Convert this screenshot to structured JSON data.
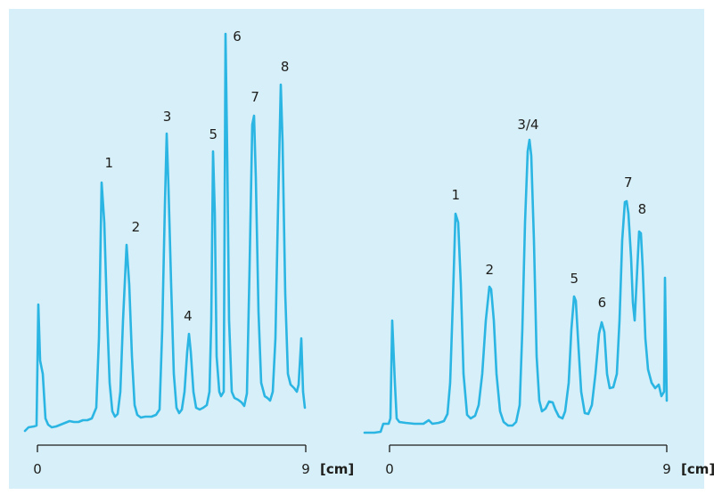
{
  "colors": {
    "background": "#d6eff8",
    "trace": "#2bb5e3",
    "axis": "#1d1d1b"
  },
  "chart_data": [
    {
      "type": "line",
      "xlabel": "[cm]",
      "xlim": [
        0,
        9
      ],
      "x_ticks": [
        "0",
        "9"
      ],
      "peaks": [
        {
          "label": "1",
          "x": 2.4,
          "height": 0.63
        },
        {
          "label": "2",
          "x": 3.3,
          "height": 0.47
        },
        {
          "label": "3",
          "x": 4.35,
          "height": 0.72
        },
        {
          "label": "4",
          "x": 5.05,
          "height": 0.23
        },
        {
          "label": "5",
          "x": 5.9,
          "height": 0.68
        },
        {
          "label": "6",
          "x": 6.4,
          "height": 0.98
        },
        {
          "label": "7",
          "x": 7.3,
          "height": 0.8
        },
        {
          "label": "8",
          "x": 8.3,
          "height": 0.85
        }
      ]
    },
    {
      "type": "line",
      "xlabel": "[cm]",
      "xlim": [
        0,
        9
      ],
      "x_ticks": [
        "0",
        "9"
      ],
      "peaks": [
        {
          "label": "1",
          "x": 2.15,
          "height": 0.55
        },
        {
          "label": "2",
          "x": 3.25,
          "height": 0.35
        },
        {
          "label": "3/4",
          "x": 4.5,
          "height": 0.74
        },
        {
          "label": "5",
          "x": 6.0,
          "height": 0.33
        },
        {
          "label": "6",
          "x": 6.9,
          "height": 0.26
        },
        {
          "label": "7",
          "x": 7.75,
          "height": 0.56
        },
        {
          "label": "8",
          "x": 8.2,
          "height": 0.48
        }
      ]
    }
  ]
}
